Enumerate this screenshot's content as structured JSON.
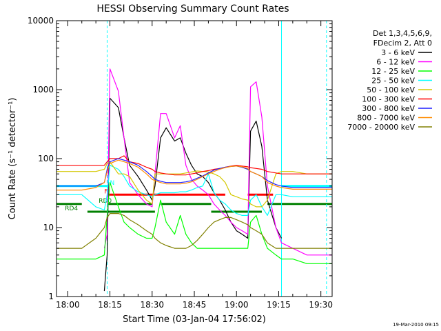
{
  "chart_data": {
    "type": "line",
    "title": "HESSI Observing Summary Count Rates",
    "xlabel": "Start Time (03-Jan-04 17:56:02)",
    "ylabel": "Count Rate (s⁻¹ detector⁻¹)",
    "y_scale": "log",
    "ylim": [
      1,
      10000
    ],
    "xlim": [
      "17:56",
      "19:34"
    ],
    "x_ticks": [
      "18:00",
      "18:15",
      "18:30",
      "18:45",
      "19:00",
      "19:15",
      "19:30"
    ],
    "y_ticks": [
      "1",
      "10",
      "100",
      "1000",
      "10000"
    ],
    "footer": "19-Mar-2010 09:15",
    "legend": {
      "placement": "right",
      "header": [
        "Det 1,3,4,5,6,9,",
        "FDecim 2, Att 0"
      ],
      "entries": [
        {
          "label": "3 - 6 keV",
          "color": "#000000"
        },
        {
          "label": "6 - 12 keV",
          "color": "#ff00ff"
        },
        {
          "label": "12 - 25 keV",
          "color": "#00ff00"
        },
        {
          "label": "25 - 50 keV",
          "color": "#00ffff"
        },
        {
          "label": "50 - 100 keV",
          "color": "#d4c800"
        },
        {
          "label": "100 - 300 keV",
          "color": "#ff0000"
        },
        {
          "label": "300 - 800 keV",
          "color": "#1e1eff"
        },
        {
          "label": "800 - 7000 keV",
          "color": "#ff8c00"
        },
        {
          "label": "7000 - 20000 keV",
          "color": "#808000"
        }
      ]
    },
    "status_bars": [
      {
        "label": "N",
        "color": "#00ffff",
        "level": 40,
        "label_at": "18:15",
        "segments": [
          [
            "17:56",
            "18:14"
          ],
          [
            "19:16",
            "19:34"
          ]
        ]
      },
      {
        "label": "F",
        "color": "#ff0000",
        "level": 30,
        "label_at": "18:13",
        "segments": [
          [
            "18:14",
            "18:56"
          ],
          [
            "19:04",
            "19:13"
          ]
        ]
      },
      {
        "label": "RD0",
        "color": "#008000",
        "level": 22,
        "label_at": "18:11",
        "segments": [
          [
            "17:56",
            "18:05"
          ],
          [
            "18:14",
            "18:30"
          ],
          [
            "18:33",
            "18:51"
          ],
          [
            "19:11",
            "19:34"
          ]
        ]
      },
      {
        "label": "RD4",
        "color": "#008000",
        "level": 17,
        "label_at": "17:59",
        "segments": [
          [
            "18:07",
            "18:31"
          ],
          [
            "18:51",
            "19:09"
          ]
        ]
      }
    ],
    "vlines": [
      {
        "time": "17:56",
        "style": "solid",
        "color": "#00ffff"
      },
      {
        "time": "18:14",
        "style": "dashed",
        "color": "#00ffff"
      },
      {
        "time": "19:16",
        "style": "solid",
        "color": "#00ffff"
      },
      {
        "time": "19:32",
        "style": "dashed",
        "color": "#00ffff"
      }
    ],
    "x": [
      "17:56",
      "18:05",
      "18:10",
      "18:13",
      "18:14",
      "18:15",
      "18:18",
      "18:20",
      "18:22",
      "18:25",
      "18:28",
      "18:30",
      "18:31",
      "18:33",
      "18:35",
      "18:38",
      "18:40",
      "18:42",
      "18:44",
      "18:46",
      "18:48",
      "18:50",
      "18:52",
      "18:54",
      "18:56",
      "18:58",
      "19:00",
      "19:02",
      "19:04",
      "19:05",
      "19:07",
      "19:09",
      "19:11",
      "19:14",
      "19:16",
      "19:20",
      "19:25",
      "19:30",
      "19:34"
    ],
    "series": [
      {
        "name": "3 - 6 keV",
        "color": "#000000",
        "values": [
          null,
          null,
          null,
          1.2,
          4,
          750,
          550,
          200,
          80,
          55,
          35,
          25,
          40,
          200,
          280,
          180,
          200,
          120,
          80,
          60,
          55,
          45,
          32,
          25,
          18,
          12,
          9,
          8,
          7,
          250,
          350,
          150,
          25,
          10,
          7,
          null,
          null,
          null,
          null
        ]
      },
      {
        "name": "6 - 12 keV",
        "color": "#ff00ff",
        "values": [
          null,
          null,
          null,
          5,
          8,
          2000,
          950,
          200,
          45,
          30,
          22,
          20,
          60,
          450,
          450,
          200,
          300,
          80,
          50,
          40,
          35,
          30,
          22,
          18,
          15,
          12,
          10,
          9,
          8,
          1100,
          1300,
          400,
          40,
          10,
          6,
          5,
          4,
          4,
          4
        ]
      },
      {
        "name": "12 - 25 keV",
        "color": "#00ff00",
        "values": [
          3.5,
          3.5,
          3.5,
          4,
          15,
          45,
          20,
          12,
          10,
          8,
          7,
          7,
          10,
          25,
          12,
          8,
          15,
          8,
          6,
          5,
          5,
          5,
          5,
          5,
          5,
          5,
          5,
          5,
          5,
          12,
          15,
          8,
          5,
          4,
          3.5,
          3.5,
          3,
          3,
          3
        ]
      },
      {
        "name": "25 - 50 keV",
        "color": "#00ffff",
        "values": [
          30,
          30,
          20,
          18,
          30,
          80,
          70,
          55,
          40,
          33,
          30,
          28,
          30,
          32,
          32,
          32,
          33,
          33,
          35,
          38,
          40,
          60,
          32,
          25,
          22,
          18,
          16,
          15,
          15,
          25,
          30,
          20,
          15,
          30,
          30,
          28,
          28,
          28,
          28
        ]
      },
      {
        "name": "50 - 100 keV",
        "color": "#d4c800",
        "values": [
          65,
          65,
          65,
          70,
          85,
          90,
          60,
          60,
          55,
          35,
          25,
          22,
          60,
          60,
          60,
          60,
          60,
          62,
          64,
          66,
          65,
          64,
          60,
          55,
          45,
          30,
          28,
          26,
          25,
          22,
          20,
          20,
          25,
          60,
          65,
          65,
          60,
          60,
          60
        ]
      },
      {
        "name": "100 - 300 keV",
        "color": "#ff0000",
        "values": [
          80,
          80,
          80,
          80,
          90,
          100,
          100,
          110,
          90,
          85,
          75,
          70,
          65,
          62,
          60,
          58,
          58,
          58,
          60,
          62,
          65,
          67,
          70,
          72,
          75,
          78,
          80,
          78,
          76,
          74,
          72,
          70,
          65,
          62,
          60,
          60,
          60,
          60,
          60
        ]
      },
      {
        "name": "300 - 800 keV",
        "color": "#1e1eff",
        "values": [
          40,
          40,
          40,
          45,
          70,
          90,
          100,
          95,
          90,
          80,
          65,
          55,
          50,
          47,
          45,
          45,
          45,
          46,
          48,
          52,
          56,
          62,
          68,
          72,
          75,
          77,
          78,
          75,
          70,
          65,
          60,
          55,
          48,
          42,
          40,
          38,
          38,
          38,
          38
        ]
      },
      {
        "name": "800 - 7000 keV",
        "color": "#ff8c00",
        "values": [
          35,
          35,
          38,
          45,
          65,
          85,
          95,
          90,
          85,
          75,
          60,
          50,
          48,
          45,
          43,
          43,
          43,
          44,
          46,
          50,
          55,
          60,
          65,
          70,
          74,
          77,
          78,
          76,
          72,
          65,
          60,
          55,
          45,
          40,
          38,
          36,
          36,
          36,
          36
        ]
      },
      {
        "name": "7000 - 20000 keV",
        "color": "#808000",
        "values": [
          5,
          5,
          7,
          10,
          14,
          16,
          16,
          15,
          13,
          11,
          9,
          8,
          7,
          6,
          5.5,
          5,
          5,
          5,
          5.5,
          6.5,
          8,
          10,
          12,
          13,
          14,
          14,
          13,
          12,
          11,
          10,
          9,
          8,
          6,
          5,
          5,
          5,
          5,
          5,
          5
        ]
      }
    ]
  }
}
